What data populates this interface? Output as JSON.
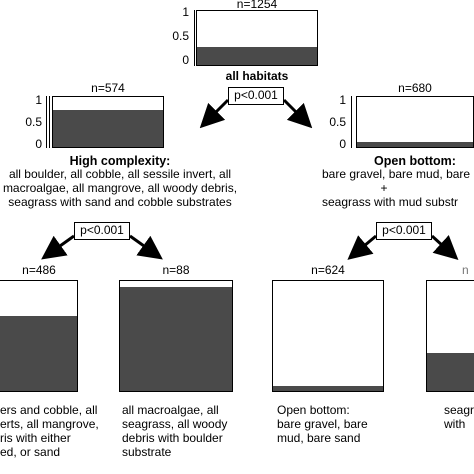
{
  "root": {
    "n_label": "n=1254",
    "fraction": 0.34,
    "axis_ticks": [
      "1",
      "0.5",
      "0"
    ],
    "title": "all habitats",
    "p_value": "p<0.001"
  },
  "left_node": {
    "n_label": "n=574",
    "fraction": 0.74,
    "axis_ticks": [
      "1",
      "0.5",
      "0"
    ],
    "title": "High complexity:",
    "desc_lines": [
      "all boulder, all cobble, all sessile invert, all",
      "macroalgae, all mangrove, all woody debris,",
      "seagrass with sand and cobble substrates"
    ],
    "p_value": "p<0.001"
  },
  "right_node": {
    "n_label": "n=680",
    "fraction": 0.1,
    "axis_ticks": [
      "1",
      "0.5",
      "0"
    ],
    "title": "Open bottom:",
    "desc_lines": [
      "bare gravel, bare mud, bare",
      "+",
      "seagrass with mud substr"
    ],
    "p_value": "p<0.001"
  },
  "leaves": [
    {
      "n_label": "n=486",
      "fraction": 0.68,
      "desc_lines": [
        "ers and cobble, all",
        "erts, all mangrove,",
        "ris with either",
        "ed, or sand"
      ]
    },
    {
      "n_label": "n=88",
      "fraction": 0.95,
      "desc_lines": [
        "all macroalgae, all",
        "seagrass, all woody",
        "debris with boulder",
        "substrate"
      ]
    },
    {
      "n_label": "n=624",
      "fraction": 0.05,
      "desc_lines": [
        "Open bottom:",
        "bare gravel, bare",
        "mud, bare sand"
      ]
    },
    {
      "n_label": "n",
      "fraction": 0.35,
      "desc_lines": [
        "seagr",
        "with"
      ]
    }
  ],
  "colors": {
    "fill": "#4a4a4a",
    "line": "#000000"
  }
}
